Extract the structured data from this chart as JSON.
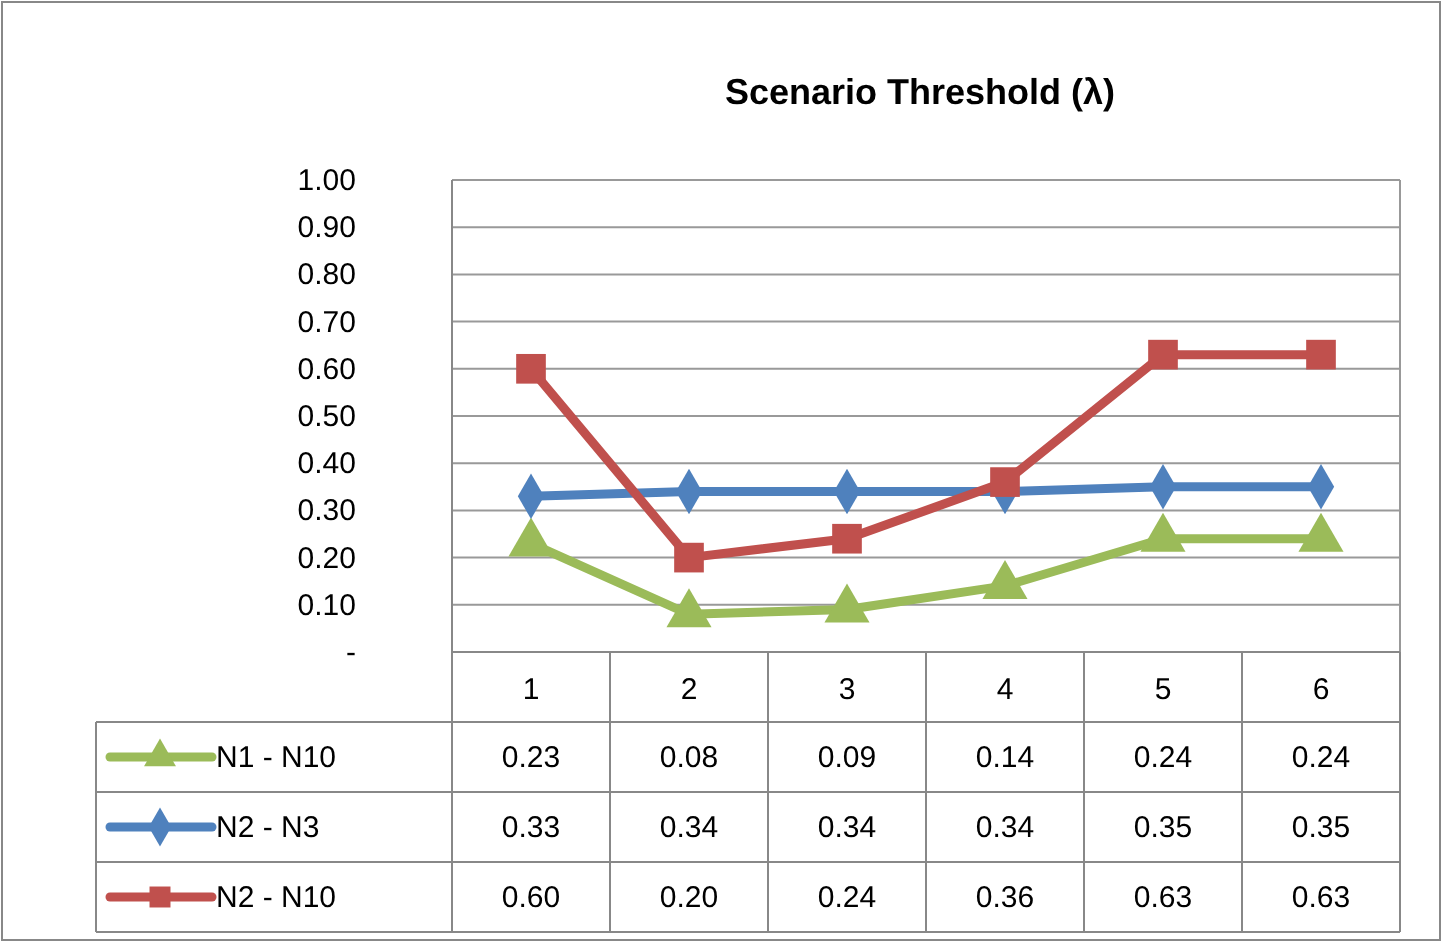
{
  "chart_data": {
    "type": "line",
    "title": "Scenario Threshold (λ)",
    "categories": [
      "1",
      "2",
      "3",
      "4",
      "5",
      "6"
    ],
    "series": [
      {
        "name": "N1 - N10",
        "color": "#9bbb59",
        "marker": "triangle",
        "values": [
          0.23,
          0.08,
          0.09,
          0.14,
          0.24,
          0.24
        ],
        "value_labels": [
          "0.23",
          "0.08",
          "0.09",
          "0.14",
          "0.24",
          "0.24"
        ]
      },
      {
        "name": "N2 - N3",
        "color": "#4f81bd",
        "marker": "diamond",
        "values": [
          0.33,
          0.34,
          0.34,
          0.34,
          0.35,
          0.35
        ],
        "value_labels": [
          "0.33",
          "0.34",
          "0.34",
          "0.34",
          "0.35",
          "0.35"
        ]
      },
      {
        "name": "N2 - N10",
        "color": "#c0504d",
        "marker": "square",
        "values": [
          0.6,
          0.2,
          0.24,
          0.36,
          0.63,
          0.63
        ],
        "value_labels": [
          "0.60",
          "0.20",
          "0.24",
          "0.36",
          "0.63",
          "0.63"
        ]
      }
    ],
    "ylim": [
      0,
      1
    ],
    "yticks": [
      {
        "value": 0,
        "label": "-"
      },
      {
        "value": 0.1,
        "label": "0.10"
      },
      {
        "value": 0.2,
        "label": "0.20"
      },
      {
        "value": 0.3,
        "label": "0.30"
      },
      {
        "value": 0.4,
        "label": "0.40"
      },
      {
        "value": 0.5,
        "label": "0.50"
      },
      {
        "value": 0.6,
        "label": "0.60"
      },
      {
        "value": 0.7,
        "label": "0.70"
      },
      {
        "value": 0.8,
        "label": "0.80"
      },
      {
        "value": 0.9,
        "label": "0.90"
      },
      {
        "value": 1,
        "label": "1.00"
      }
    ],
    "grid": "y",
    "legend": "bottom left",
    "line_style": "solid"
  }
}
